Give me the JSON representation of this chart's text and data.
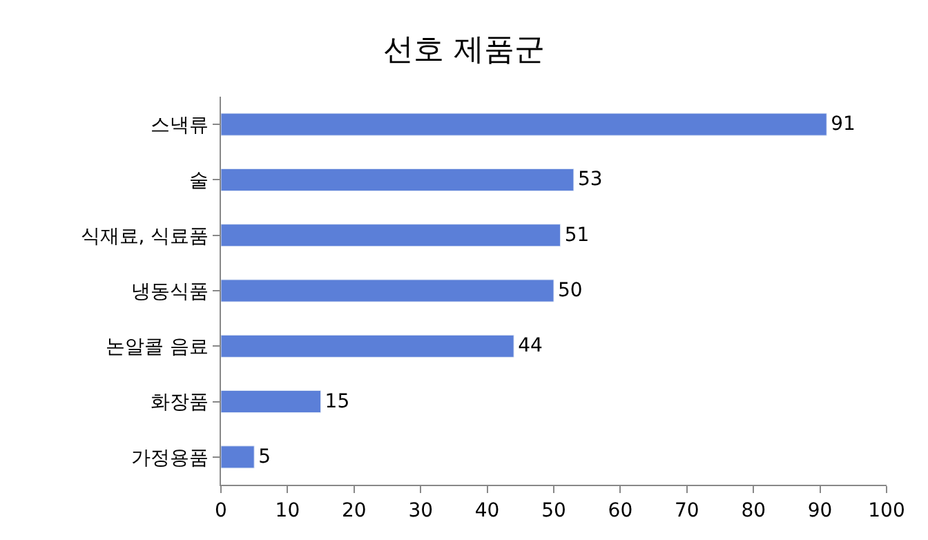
{
  "chart_data": {
    "type": "bar",
    "orientation": "horizontal",
    "title": "선호 제품군",
    "categories": [
      "스낵류",
      "술",
      "식재료, 식료품",
      "냉동식품",
      "논알콜 음료",
      "화장품",
      "가정용품"
    ],
    "values": [
      91,
      53,
      51,
      50,
      44,
      15,
      5
    ],
    "color": "#5b7fd8",
    "xlim": [
      0,
      100
    ],
    "xticks": [
      0,
      10,
      20,
      30,
      40,
      50,
      60,
      70,
      80,
      90,
      100
    ],
    "data_labels": true
  }
}
